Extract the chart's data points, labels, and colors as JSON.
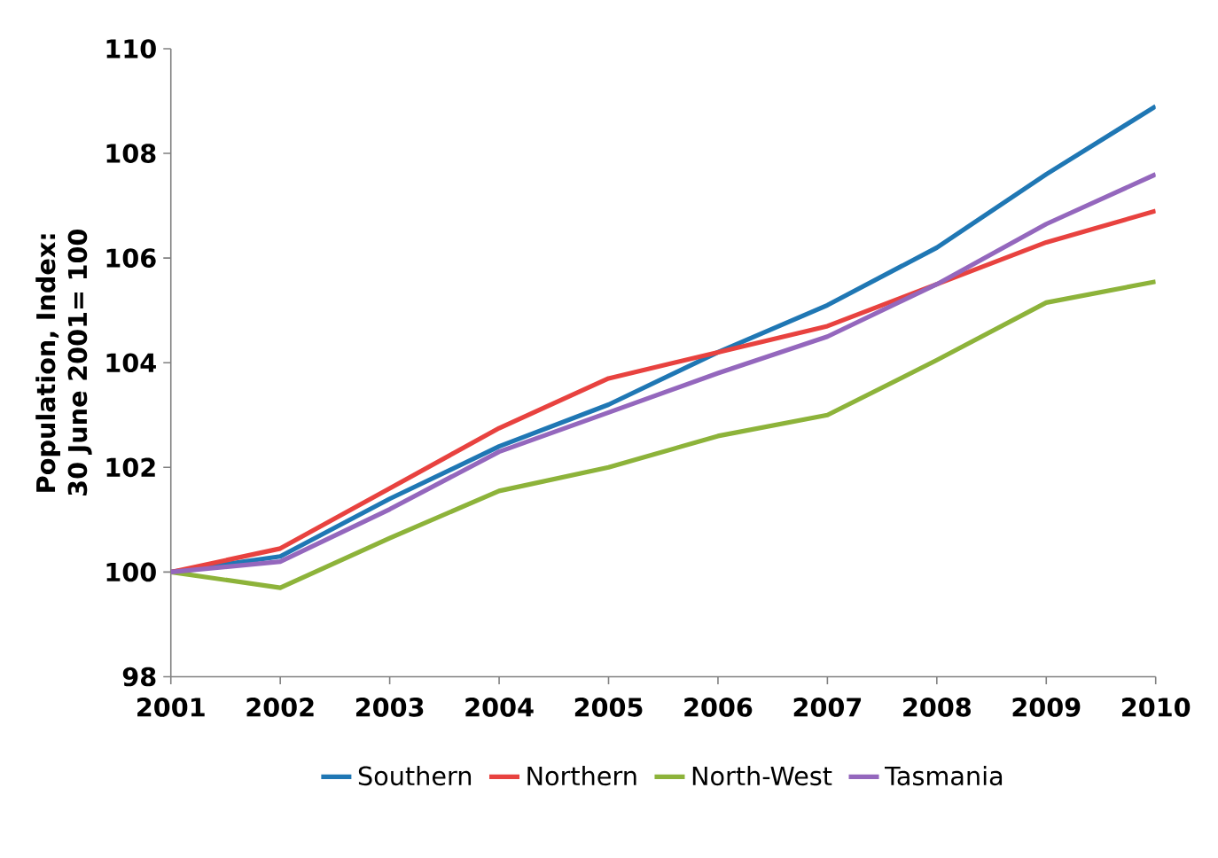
{
  "chart_data": {
    "type": "line",
    "ylabel": "Population, Index: 30 June 2001= 100",
    "x": [
      2001,
      2002,
      2003,
      2004,
      2005,
      2006,
      2007,
      2008,
      2009,
      2010
    ],
    "xlim": [
      2001,
      2010
    ],
    "xticks": [
      2001,
      2002,
      2003,
      2004,
      2005,
      2006,
      2007,
      2008,
      2009,
      2010
    ],
    "ylim": [
      98,
      110
    ],
    "yticks": [
      98,
      100,
      102,
      104,
      106,
      108,
      110
    ],
    "grid": false,
    "legend": "bottom",
    "marker": "none",
    "line_style": "solid",
    "series": [
      {
        "name": "Southern",
        "color": "#1f77b4",
        "values": [
          100,
          100.3,
          101.4,
          102.4,
          103.2,
          104.2,
          105.1,
          106.2,
          107.6,
          108.9
        ]
      },
      {
        "name": "Northern",
        "color": "#e8423f",
        "values": [
          100,
          100.45,
          101.6,
          102.75,
          103.7,
          104.2,
          104.7,
          105.5,
          106.3,
          106.9
        ]
      },
      {
        "name": "North-West",
        "color": "#8db33a",
        "values": [
          100,
          99.7,
          100.65,
          101.55,
          102.0,
          102.6,
          103.0,
          104.05,
          105.15,
          105.55
        ]
      },
      {
        "name": "Tasmania",
        "color": "#9467bd",
        "values": [
          100,
          100.2,
          101.2,
          102.3,
          103.05,
          103.8,
          104.5,
          105.5,
          106.65,
          107.6
        ]
      }
    ]
  }
}
